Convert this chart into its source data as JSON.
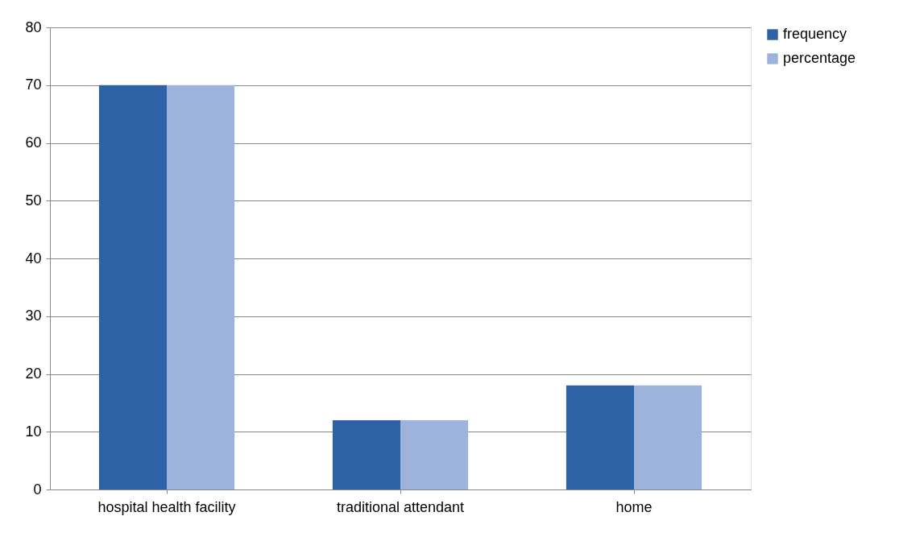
{
  "chart_data": {
    "type": "bar",
    "categories": [
      "hospital health facility",
      "traditional attendant",
      "home"
    ],
    "series": [
      {
        "name": "frequency",
        "color": "#2e62a6",
        "values": [
          70,
          12,
          18
        ]
      },
      {
        "name": "percentage",
        "color": "#9db3dc",
        "values": [
          70,
          12,
          18
        ]
      }
    ],
    "ylim": [
      0,
      80
    ],
    "yticks": [
      0,
      10,
      20,
      30,
      40,
      50,
      60,
      70,
      80
    ],
    "grid": "y",
    "legend": "right"
  }
}
